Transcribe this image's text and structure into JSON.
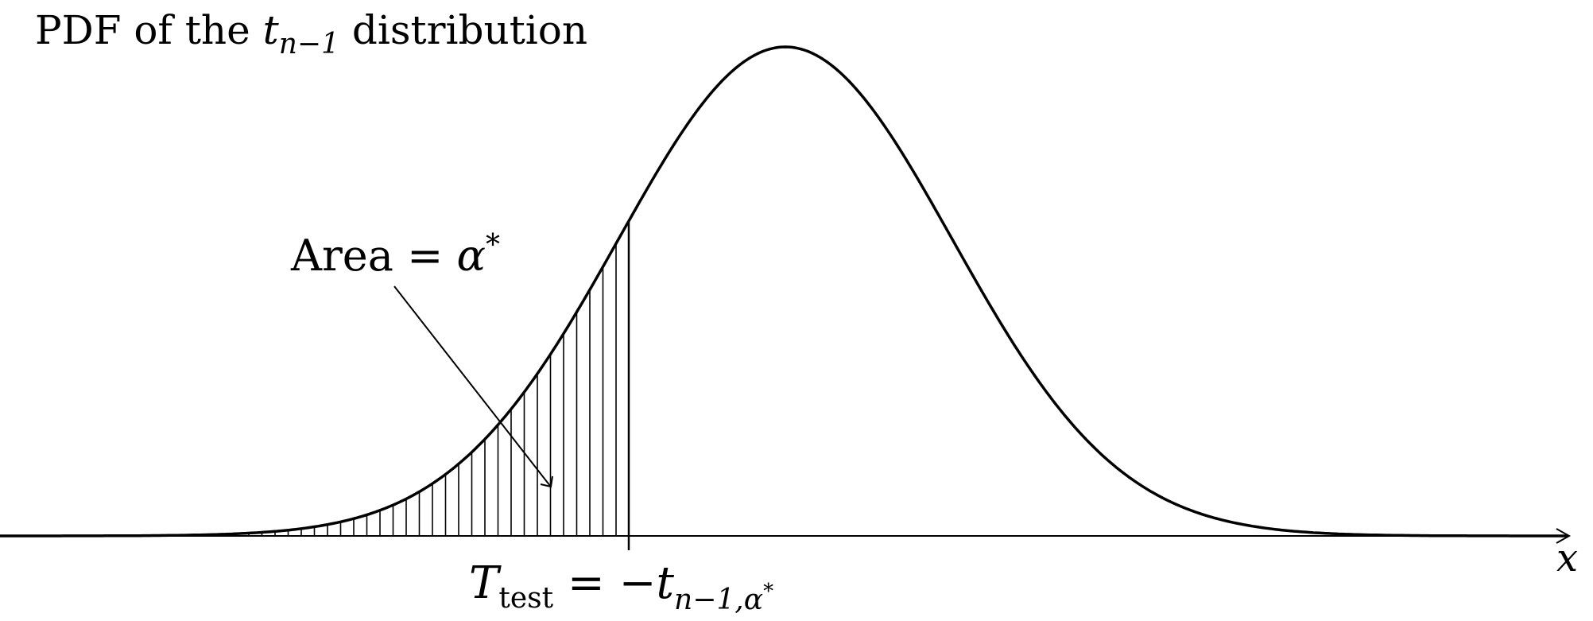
{
  "title": {
    "prefix": "PDF of the ",
    "var": "t",
    "sub": "n−1",
    "suffix": " distribution"
  },
  "area_label": {
    "text": "Area = ",
    "alpha": "α",
    "star": "*"
  },
  "x_axis_label": "x",
  "critical_label": {
    "T": "T",
    "T_sub": "test",
    "equals": " = −",
    "t": "t",
    "t_sub": "n−1,α",
    "t_sub_star": "*"
  },
  "colors": {
    "curve": "#000000",
    "axis": "#000000",
    "hatch": "#000000",
    "background": "#ffffff"
  }
}
